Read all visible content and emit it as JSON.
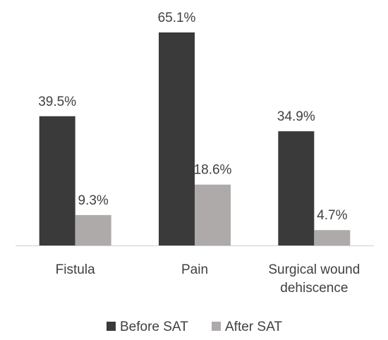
{
  "chart_data": {
    "type": "bar",
    "categories": [
      "Fistula",
      "Pain",
      "Surgical wound dehiscence"
    ],
    "category_label_lines": [
      [
        "Fistula"
      ],
      [
        "Pain"
      ],
      [
        "Surgical wound",
        "dehiscence"
      ]
    ],
    "series": [
      {
        "name": "Before SAT",
        "values": [
          39.5,
          65.1,
          34.9
        ],
        "labels": [
          "39.5%",
          "65.1%",
          "34.9%"
        ],
        "color": "#3a3a3a"
      },
      {
        "name": "After SAT",
        "values": [
          9.3,
          18.6,
          4.7
        ],
        "labels": [
          "9.3%",
          "18.6%",
          "4.7%"
        ],
        "color": "#aeaaaa"
      }
    ],
    "unit": "%",
    "ylim": [
      0,
      70
    ],
    "grid": false,
    "legend_position": "bottom",
    "text_color": "#404040",
    "axis_color": "#d0d0d0"
  }
}
